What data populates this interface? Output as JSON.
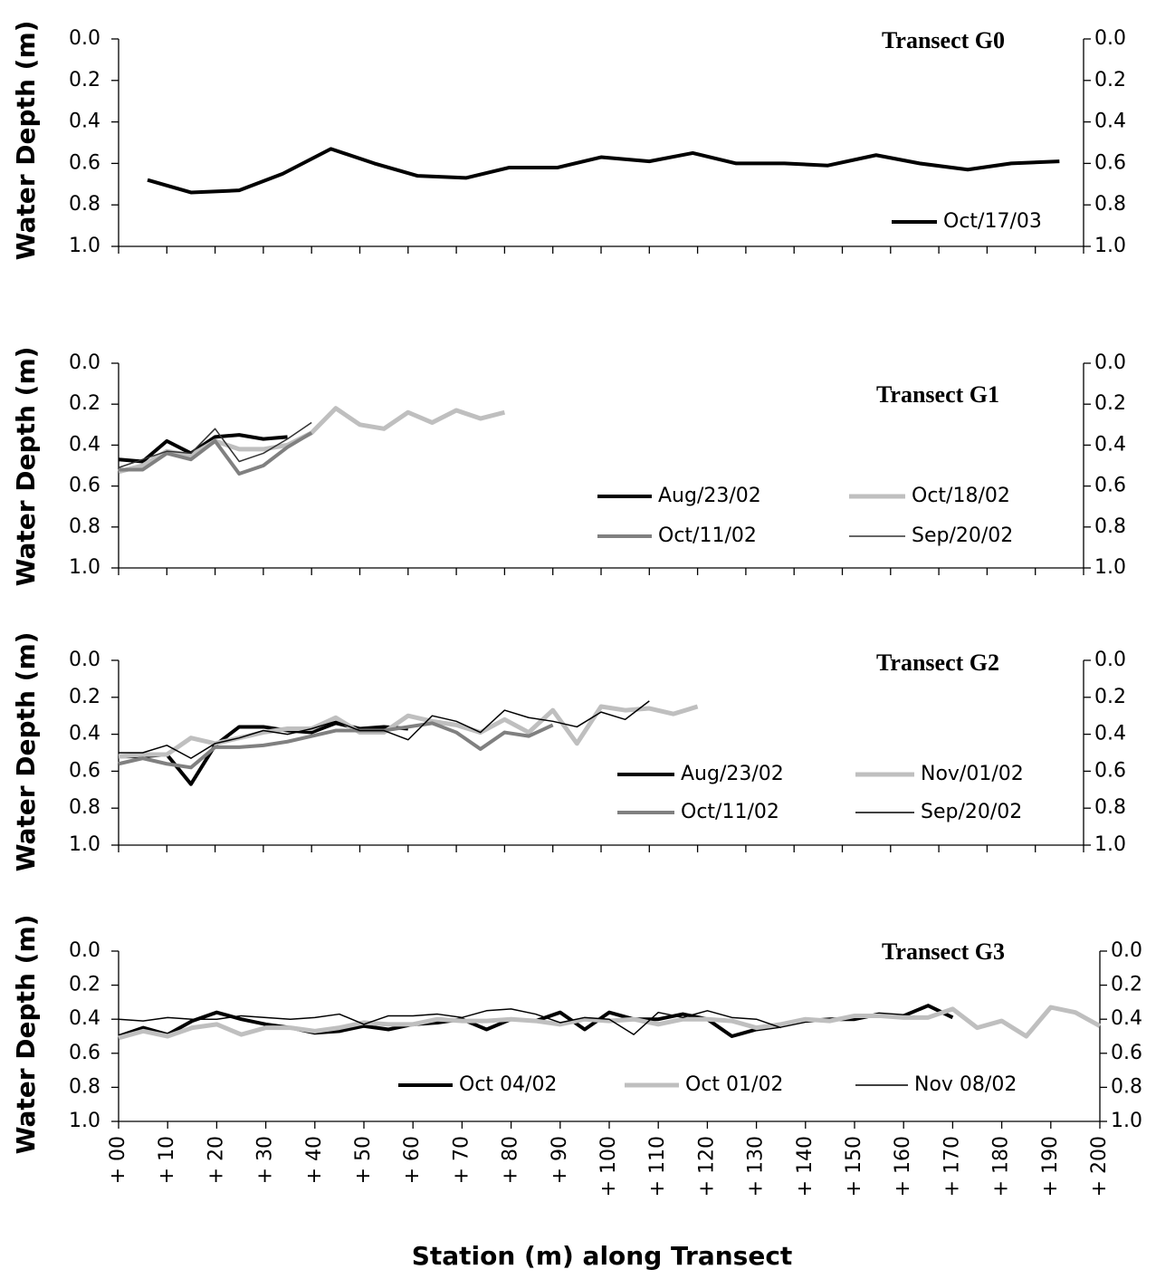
{
  "chart_data": [
    {
      "type": "line",
      "title": "Transect G0",
      "ylabel": "Water Depth (m)",
      "xlim": [
        0,
        200
      ],
      "ylim": [
        0,
        1
      ],
      "y_inverted": true,
      "yticks": [
        {
          "value": 0,
          "label": "0.0"
        },
        {
          "value": 0.2,
          "label": "0.2"
        },
        {
          "value": 0.4,
          "label": "0.4"
        },
        {
          "value": 0.6,
          "label": "0.6"
        },
        {
          "value": 0.8,
          "label": "0.8"
        },
        {
          "value": 1,
          "label": "1.0"
        }
      ],
      "y2lim": [
        0,
        1
      ],
      "y2ticks": [
        {
          "value": 0,
          "label": "0.0"
        },
        {
          "value": 0.2,
          "label": "0.2"
        },
        {
          "value": 0.4,
          "label": "0.4"
        },
        {
          "value": 0.6,
          "label": "0.6"
        },
        {
          "value": 0.8,
          "label": "0.8"
        },
        {
          "value": 1,
          "label": "1.0"
        }
      ],
      "series": [
        {
          "name": "Oct/17/03",
          "color": "#000000",
          "width": 4,
          "x": [
            6,
            15,
            25,
            34,
            44,
            53,
            62,
            72,
            81,
            91,
            100,
            110,
            119,
            128,
            138,
            147,
            157,
            166,
            176,
            185,
            195
          ],
          "values": [
            0.68,
            0.74,
            0.73,
            0.65,
            0.53,
            0.6,
            0.66,
            0.67,
            0.62,
            0.62,
            0.57,
            0.59,
            0.55,
            0.6,
            0.6,
            0.61,
            0.56,
            0.6,
            0.63,
            0.6,
            0.59
          ]
        }
      ]
    },
    {
      "type": "line",
      "title": "Transect G1",
      "ylabel": "Water Depth (m)",
      "xlim": [
        0,
        200
      ],
      "ylim": [
        0,
        1
      ],
      "y_inverted": true,
      "yticks": [
        {
          "value": 0,
          "label": "0.0"
        },
        {
          "value": 0.2,
          "label": "0.2"
        },
        {
          "value": 0.4,
          "label": "0.4"
        },
        {
          "value": 0.6,
          "label": "0.6"
        },
        {
          "value": 0.8,
          "label": "0.8"
        },
        {
          "value": 1,
          "label": "1.0"
        }
      ],
      "y2lim": [
        0,
        1
      ],
      "y2ticks": [
        {
          "value": 0,
          "label": "0.0"
        },
        {
          "value": 0.2,
          "label": "0.2"
        },
        {
          "value": 0.4,
          "label": "0.4"
        },
        {
          "value": 0.6,
          "label": "0.6"
        },
        {
          "value": 0.8,
          "label": "0.8"
        },
        {
          "value": 1,
          "label": "1.0"
        }
      ],
      "series": [
        {
          "name": "Aug/23/02",
          "color": "#000000",
          "width": 4,
          "x": [
            0,
            5,
            10,
            15,
            20,
            25,
            30,
            35
          ],
          "values": [
            0.47,
            0.48,
            0.38,
            0.44,
            0.36,
            0.35,
            0.37,
            0.36
          ]
        },
        {
          "name": "Oct/18/02",
          "color": "#bfbfbf",
          "width": 5,
          "x": [
            0,
            5,
            10,
            15,
            20,
            25,
            30,
            35,
            40,
            45,
            50,
            55,
            60,
            65,
            70,
            75,
            80
          ],
          "values": [
            0.53,
            0.5,
            0.43,
            0.45,
            0.38,
            0.42,
            0.42,
            0.4,
            0.34,
            0.22,
            0.3,
            0.32,
            0.24,
            0.29,
            0.23,
            0.27,
            0.24
          ]
        },
        {
          "name": "Oct/11/02",
          "color": "#808080",
          "width": 4,
          "x": [
            0,
            5,
            10,
            15,
            20,
            25,
            30,
            35,
            40
          ],
          "values": [
            0.52,
            0.52,
            0.44,
            0.47,
            0.38,
            0.54,
            0.5,
            0.41,
            0.34
          ]
        },
        {
          "name": "Sep/20/02",
          "color": "#333333",
          "width": 1.5,
          "x": [
            0,
            5,
            10,
            15,
            20,
            25,
            30,
            35,
            40
          ],
          "values": [
            0.51,
            0.47,
            0.43,
            0.44,
            0.32,
            0.48,
            0.44,
            0.37,
            0.29
          ]
        }
      ]
    },
    {
      "type": "line",
      "title": "Transect G2",
      "ylabel": "Water Depth (m)",
      "xlim": [
        0,
        200
      ],
      "ylim": [
        0,
        1
      ],
      "y_inverted": true,
      "yticks": [
        {
          "value": 0,
          "label": "0.0"
        },
        {
          "value": 0.2,
          "label": "0.2"
        },
        {
          "value": 0.4,
          "label": "0.4"
        },
        {
          "value": 0.6,
          "label": "0.6"
        },
        {
          "value": 0.8,
          "label": "0.8"
        },
        {
          "value": 1,
          "label": "1.0"
        }
      ],
      "y2lim": [
        0,
        1
      ],
      "y2ticks": [
        {
          "value": 0,
          "label": "0.0"
        },
        {
          "value": 0.2,
          "label": "0.2"
        },
        {
          "value": 0.4,
          "label": "0.4"
        },
        {
          "value": 0.6,
          "label": "0.6"
        },
        {
          "value": 0.8,
          "label": "0.8"
        },
        {
          "value": 1,
          "label": "1.0"
        }
      ],
      "series": [
        {
          "name": "Aug/23/02",
          "color": "#000000",
          "width": 4,
          "x": [
            0,
            5,
            10,
            15,
            20,
            25,
            30,
            35,
            40,
            45,
            50,
            55,
            60
          ],
          "values": [
            0.52,
            0.52,
            0.51,
            0.67,
            0.46,
            0.36,
            0.36,
            0.38,
            0.39,
            0.34,
            0.37,
            0.36,
            0.37
          ]
        },
        {
          "name": "Nov/01/02",
          "color": "#bfbfbf",
          "width": 5,
          "x": [
            0,
            5,
            10,
            15,
            20,
            25,
            30,
            35,
            40,
            45,
            50,
            55,
            60,
            65,
            70,
            75,
            80,
            85,
            90,
            95,
            100,
            105,
            110,
            115,
            120
          ],
          "values": [
            0.52,
            0.51,
            0.51,
            0.42,
            0.45,
            0.42,
            0.39,
            0.37,
            0.37,
            0.31,
            0.39,
            0.39,
            0.3,
            0.33,
            0.35,
            0.39,
            0.32,
            0.39,
            0.27,
            0.45,
            0.25,
            0.27,
            0.26,
            0.29,
            0.25
          ]
        },
        {
          "name": "Oct/11/02",
          "color": "#808080",
          "width": 4,
          "x": [
            0,
            5,
            10,
            15,
            20,
            25,
            30,
            35,
            40,
            45,
            50,
            55,
            60,
            65,
            70,
            75,
            80,
            85,
            90
          ],
          "values": [
            0.56,
            0.53,
            0.56,
            0.58,
            0.47,
            0.47,
            0.46,
            0.44,
            0.41,
            0.38,
            0.38,
            0.38,
            0.36,
            0.34,
            0.39,
            0.48,
            0.39,
            0.41,
            0.35
          ]
        },
        {
          "name": "Sep/20/02",
          "color": "#000000",
          "width": 1.5,
          "x": [
            0,
            5,
            10,
            15,
            20,
            25,
            30,
            35,
            40,
            45,
            50,
            55,
            60,
            65,
            70,
            75,
            80,
            85,
            90,
            95,
            100,
            105,
            110
          ],
          "values": [
            0.5,
            0.5,
            0.46,
            0.53,
            0.45,
            0.42,
            0.38,
            0.4,
            0.37,
            0.33,
            0.38,
            0.38,
            0.43,
            0.3,
            0.33,
            0.39,
            0.27,
            0.31,
            0.33,
            0.36,
            0.28,
            0.32,
            0.22
          ]
        }
      ]
    },
    {
      "type": "line",
      "title": "Transect G3",
      "ylabel": "Water Depth (m)",
      "xlabel": "Station (m) along Transect",
      "xlim": [
        0,
        200
      ],
      "ylim": [
        0,
        1
      ],
      "y_inverted": true,
      "xticks": [
        {
          "value": 0,
          "label": "+ 00"
        },
        {
          "value": 10,
          "label": "+ 10"
        },
        {
          "value": 20,
          "label": "+ 20"
        },
        {
          "value": 30,
          "label": "+ 30"
        },
        {
          "value": 40,
          "label": "+ 40"
        },
        {
          "value": 50,
          "label": "+ 50"
        },
        {
          "value": 60,
          "label": "+ 60"
        },
        {
          "value": 70,
          "label": "+ 70"
        },
        {
          "value": 80,
          "label": "+ 80"
        },
        {
          "value": 90,
          "label": "+ 90"
        },
        {
          "value": 100,
          "label": "+ 100"
        },
        {
          "value": 110,
          "label": "+ 110"
        },
        {
          "value": 120,
          "label": "+ 120"
        },
        {
          "value": 130,
          "label": "+ 130"
        },
        {
          "value": 140,
          "label": "+ 140"
        },
        {
          "value": 150,
          "label": "+ 150"
        },
        {
          "value": 160,
          "label": "+ 160"
        },
        {
          "value": 170,
          "label": "+ 170"
        },
        {
          "value": 180,
          "label": "+ 180"
        },
        {
          "value": 190,
          "label": "+ 190"
        },
        {
          "value": 200,
          "label": "+ 200"
        }
      ],
      "yticks": [
        {
          "value": 0,
          "label": "0.0"
        },
        {
          "value": 0.2,
          "label": "0.2"
        },
        {
          "value": 0.4,
          "label": "0.4"
        },
        {
          "value": 0.6,
          "label": "0.6"
        },
        {
          "value": 0.8,
          "label": "0.8"
        },
        {
          "value": 1,
          "label": "1.0"
        }
      ],
      "y2lim": [
        0,
        1
      ],
      "y2ticks": [
        {
          "value": 0,
          "label": "0.0"
        },
        {
          "value": 0.2,
          "label": "0.2"
        },
        {
          "value": 0.4,
          "label": "0.4"
        },
        {
          "value": 0.6,
          "label": "0.6"
        },
        {
          "value": 0.8,
          "label": "0.8"
        },
        {
          "value": 1,
          "label": "1.0"
        }
      ],
      "series": [
        {
          "name": "Oct 04/02",
          "color": "#000000",
          "width": 4,
          "x": [
            0,
            5,
            10,
            15,
            20,
            25,
            30,
            35,
            40,
            45,
            50,
            55,
            60,
            65,
            70,
            75,
            80,
            85,
            90,
            95,
            100,
            105,
            110,
            115,
            120,
            125,
            130,
            135,
            140,
            145,
            150,
            155,
            160,
            165,
            170
          ],
          "values": [
            0.5,
            0.45,
            0.49,
            0.41,
            0.36,
            0.4,
            0.43,
            0.45,
            0.48,
            0.47,
            0.44,
            0.46,
            0.43,
            0.42,
            0.4,
            0.46,
            0.4,
            0.41,
            0.36,
            0.46,
            0.36,
            0.4,
            0.4,
            0.37,
            0.4,
            0.5,
            0.46,
            0.44,
            0.41,
            0.4,
            0.4,
            0.37,
            0.38,
            0.32,
            0.39
          ]
        },
        {
          "name": "Oct 01/02",
          "color": "#bfbfbf",
          "width": 5,
          "x": [
            0,
            5,
            10,
            15,
            20,
            25,
            30,
            35,
            40,
            45,
            50,
            55,
            60,
            65,
            70,
            75,
            80,
            85,
            90,
            95,
            100,
            105,
            110,
            115,
            120,
            125,
            130,
            135,
            140,
            145,
            150,
            155,
            160,
            165,
            170,
            175,
            180,
            185,
            190,
            195,
            200
          ],
          "values": [
            0.51,
            0.47,
            0.5,
            0.45,
            0.43,
            0.49,
            0.45,
            0.45,
            0.47,
            0.45,
            0.42,
            0.43,
            0.43,
            0.4,
            0.41,
            0.41,
            0.4,
            0.41,
            0.43,
            0.4,
            0.41,
            0.4,
            0.43,
            0.4,
            0.4,
            0.41,
            0.45,
            0.43,
            0.4,
            0.41,
            0.38,
            0.38,
            0.39,
            0.39,
            0.34,
            0.45,
            0.41,
            0.5,
            0.33,
            0.36,
            0.44
          ]
        },
        {
          "name": "Nov 08/02",
          "color": "#000000",
          "width": 1.5,
          "x": [
            0,
            5,
            10,
            15,
            20,
            25,
            30,
            35,
            40,
            45,
            50,
            55,
            60,
            65,
            70,
            75,
            80,
            85,
            90,
            95,
            100,
            105,
            110,
            115,
            120,
            125,
            130,
            135
          ],
          "values": [
            0.4,
            0.41,
            0.39,
            0.4,
            0.4,
            0.38,
            0.39,
            0.4,
            0.39,
            0.37,
            0.43,
            0.38,
            0.38,
            0.37,
            0.39,
            0.35,
            0.34,
            0.37,
            0.42,
            0.39,
            0.4,
            0.49,
            0.36,
            0.39,
            0.35,
            0.39,
            0.4,
            0.45
          ]
        }
      ]
    }
  ]
}
